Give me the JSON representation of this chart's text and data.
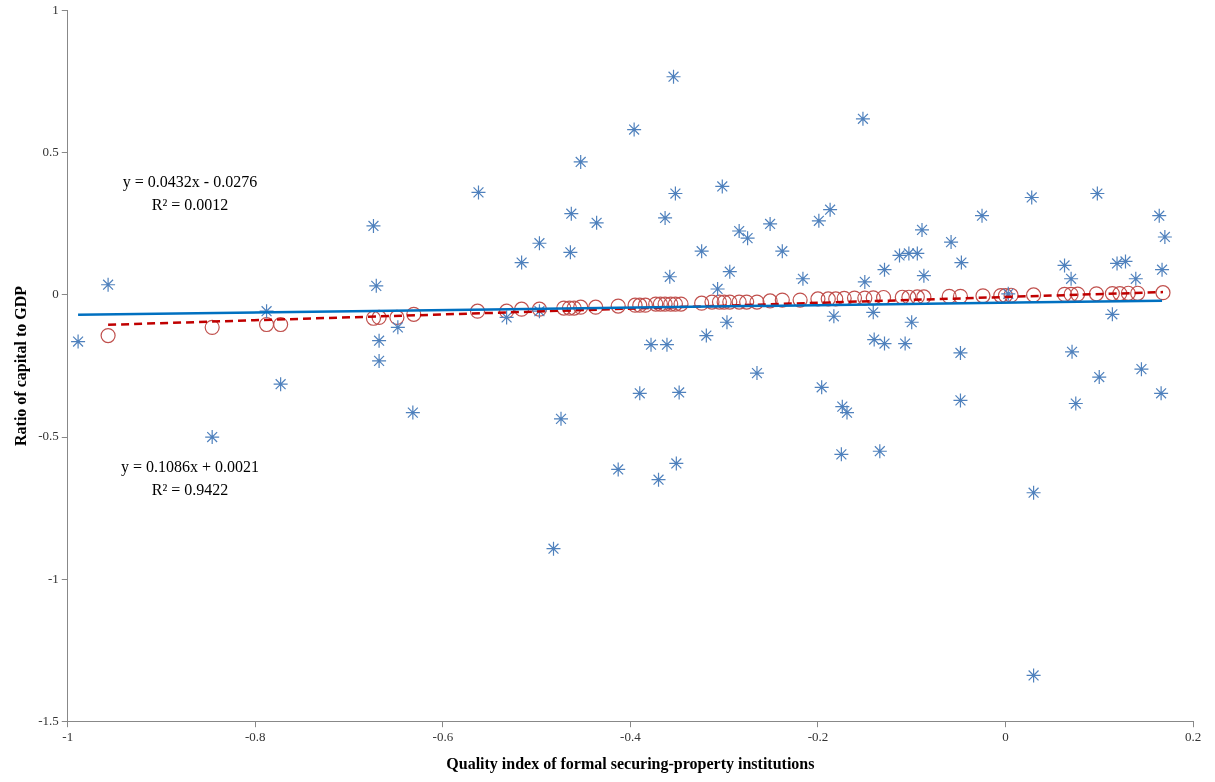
{
  "chart_data": {
    "type": "scatter",
    "xlabel": "Quality index of formal securing-property institutions",
    "ylabel": "Ratio of capital to GDP",
    "xlim": [
      -1,
      0.2
    ],
    "xticks": [
      -1,
      -0.8,
      -0.6,
      -0.4,
      -0.2,
      0,
      0.2
    ],
    "ylim": [
      -1.5,
      1
    ],
    "yticks": [
      -1.5,
      -1,
      -0.5,
      0,
      0.5,
      1
    ],
    "legend": false,
    "grid": false,
    "annotations": [
      "y = 0.0432x - 0.0276",
      "R² = 0.0012",
      "y = 0.1086x + 0.0021",
      "R² = 0.9422"
    ],
    "series": [
      {
        "color": "#4f81bd",
        "marker": "cross",
        "x": [
          -0.989,
          -0.957,
          -0.846,
          -0.788,
          -0.773,
          -0.674,
          -0.671,
          -0.668,
          -0.668,
          -0.648,
          -0.632,
          -0.562,
          -0.516,
          -0.497,
          -0.453,
          -0.463,
          -0.464,
          -0.436,
          -0.396,
          -0.354,
          -0.352,
          -0.363,
          -0.358,
          -0.302,
          -0.324,
          -0.294,
          -0.284,
          -0.275,
          -0.251,
          -0.238,
          -0.216,
          -0.199,
          -0.187,
          -0.532,
          -0.497,
          -0.378,
          -0.361,
          -0.319,
          -0.297,
          -0.307,
          -0.265,
          -0.39,
          -0.348,
          -0.474,
          -0.196,
          -0.183,
          -0.152,
          -0.089,
          -0.058,
          -0.047,
          -0.025,
          0.028,
          0.098,
          0.164,
          0.17,
          0.167,
          0.063,
          0.07,
          0.119,
          0.128,
          0.139,
          -0.129,
          -0.113,
          -0.103,
          -0.094,
          -0.087,
          -0.15,
          0.003,
          -0.141,
          -0.1,
          -0.14,
          -0.129,
          -0.107,
          -0.048,
          0.114,
          0.071,
          0.1,
          0.145,
          0.166,
          0.075,
          -0.048,
          -0.174,
          -0.169,
          -0.413,
          -0.37,
          -0.351,
          -0.482,
          -0.175,
          -0.134,
          0.03,
          0.03
        ],
        "values": [
          -0.164,
          0.036,
          -0.5,
          -0.057,
          -0.314,
          0.243,
          0.032,
          -0.161,
          -0.232,
          -0.114,
          -0.414,
          0.361,
          0.114,
          0.182,
          0.468,
          0.286,
          0.15,
          0.254,
          0.582,
          0.768,
          0.357,
          0.271,
          0.064,
          0.382,
          0.154,
          0.082,
          0.225,
          0.2,
          0.25,
          0.154,
          0.057,
          0.261,
          0.3,
          -0.079,
          -0.057,
          -0.175,
          -0.175,
          -0.143,
          -0.096,
          0.021,
          -0.275,
          -0.346,
          -0.343,
          -0.436,
          -0.325,
          -0.075,
          0.62,
          0.229,
          0.186,
          0.114,
          0.279,
          0.343,
          0.357,
          0.279,
          0.204,
          0.089,
          0.104,
          0.057,
          0.111,
          0.118,
          0.057,
          0.089,
          0.139,
          0.146,
          0.146,
          0.068,
          0.046,
          0.004,
          -0.061,
          -0.096,
          -0.157,
          -0.171,
          -0.171,
          -0.204,
          -0.068,
          -0.2,
          -0.289,
          -0.261,
          -0.346,
          -0.382,
          -0.371,
          -0.393,
          -0.414,
          -0.614,
          -0.65,
          -0.593,
          -0.893,
          -0.561,
          -0.55,
          -0.696,
          -1.339
        ]
      },
      {
        "color": "#c0504d",
        "marker": "circle",
        "x": [
          -0.957,
          -0.846,
          -0.788,
          -0.773,
          -0.674,
          -0.668,
          -0.649,
          -0.631,
          -0.563,
          -0.532,
          -0.516,
          -0.497,
          -0.471,
          -0.465,
          -0.46,
          -0.453,
          -0.437,
          -0.413,
          -0.395,
          -0.39,
          -0.384,
          -0.373,
          -0.368,
          -0.363,
          -0.357,
          -0.352,
          -0.346,
          -0.324,
          -0.313,
          -0.305,
          -0.3,
          -0.294,
          -0.284,
          -0.276,
          -0.265,
          -0.251,
          -0.238,
          -0.219,
          -0.2,
          -0.189,
          -0.181,
          -0.172,
          -0.161,
          -0.15,
          -0.141,
          -0.13,
          -0.11,
          -0.103,
          -0.094,
          -0.087,
          -0.06,
          -0.048,
          -0.024,
          -0.005,
          0.0,
          0.006,
          0.03,
          0.063,
          0.07,
          0.077,
          0.097,
          0.114,
          0.122,
          0.131,
          0.141,
          0.168
        ],
        "values": [
          -0.143,
          -0.114,
          -0.104,
          -0.104,
          -0.082,
          -0.079,
          -0.079,
          -0.068,
          -0.057,
          -0.057,
          -0.05,
          -0.05,
          -0.046,
          -0.046,
          -0.046,
          -0.043,
          -0.043,
          -0.039,
          -0.036,
          -0.036,
          -0.036,
          -0.032,
          -0.032,
          -0.032,
          -0.032,
          -0.032,
          -0.032,
          -0.029,
          -0.025,
          -0.025,
          -0.025,
          -0.025,
          -0.025,
          -0.025,
          -0.025,
          -0.021,
          -0.018,
          -0.018,
          -0.014,
          -0.014,
          -0.014,
          -0.012,
          -0.011,
          -0.011,
          -0.01,
          -0.009,
          -0.008,
          -0.008,
          -0.007,
          -0.007,
          -0.005,
          -0.005,
          -0.003,
          -0.002,
          -0.002,
          -0.001,
          0.0,
          0.002,
          0.002,
          0.003,
          0.004,
          0.005,
          0.005,
          0.006,
          0.006,
          0.008
        ]
      },
      {
        "type": "line",
        "color": "#0070c0",
        "marker": "none",
        "line_style": "solid",
        "x": [
          -0.989,
          0.167
        ],
        "values": [
          -0.07,
          -0.02
        ]
      },
      {
        "type": "line",
        "color": "#c00000",
        "marker": "none",
        "line_style": "dashed",
        "x": [
          -0.957,
          0.168
        ],
        "values": [
          -0.105,
          0.01
        ]
      }
    ]
  }
}
